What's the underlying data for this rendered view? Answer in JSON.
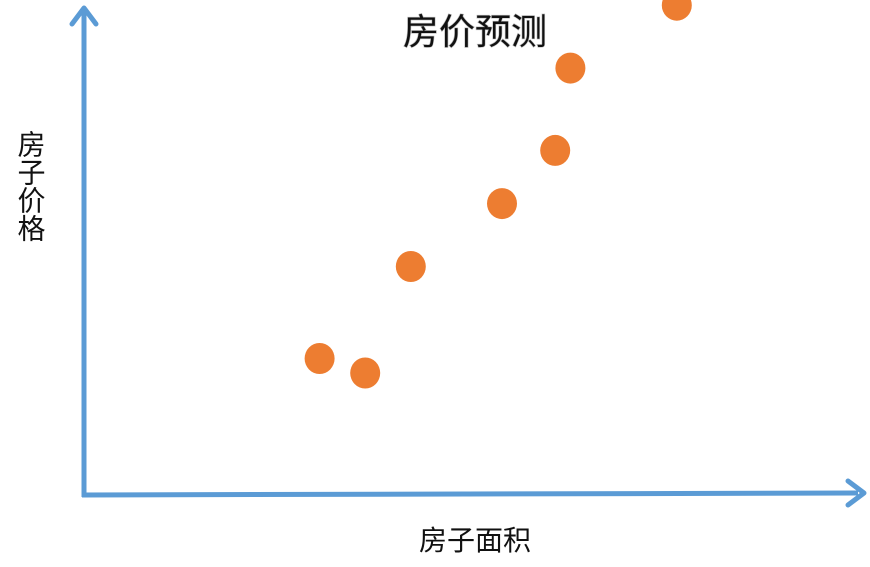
{
  "chart_data": {
    "type": "scatter",
    "title": "房价预测",
    "xlabel": "房子面积",
    "ylabel": "房子价格",
    "xlim": [
      0,
      100
    ],
    "ylim": [
      0,
      100
    ],
    "grid": false,
    "axis_ticks": false,
    "points": [
      {
        "x": 31,
        "y": 28
      },
      {
        "x": 37,
        "y": 25
      },
      {
        "x": 43,
        "y": 47
      },
      {
        "x": 55,
        "y": 60
      },
      {
        "x": 62,
        "y": 71
      },
      {
        "x": 64,
        "y": 88
      },
      {
        "x": 78,
        "y": 101
      }
    ]
  },
  "colors": {
    "axis": "#5b9bd5",
    "marker": "#ed7d31",
    "text": "#111111"
  }
}
